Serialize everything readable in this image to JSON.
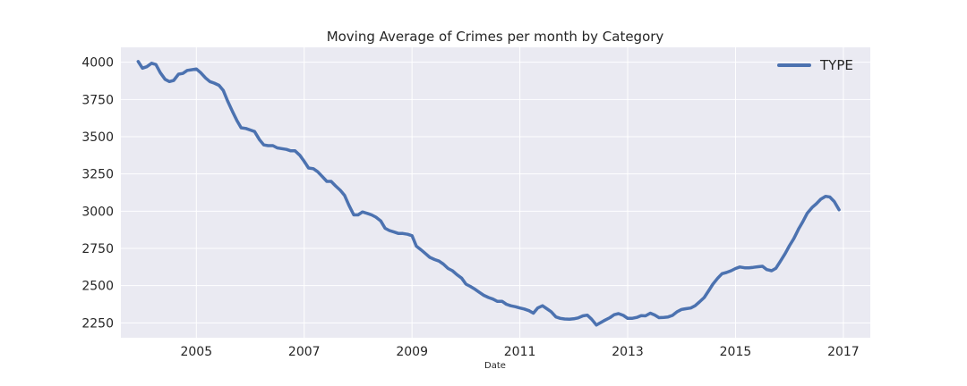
{
  "chart_data": {
    "type": "line",
    "title": "Moving Average of Crimes per month by Category",
    "xlabel": "Date",
    "ylabel": "",
    "xlim": [
      2003.6,
      2017.5
    ],
    "ylim": [
      2150,
      4100
    ],
    "x_ticks": [
      2005,
      2007,
      2009,
      2011,
      2013,
      2015,
      2017
    ],
    "y_ticks": [
      2250,
      2500,
      2750,
      3000,
      3250,
      3500,
      3750,
      4000
    ],
    "grid": true,
    "legend_position": "top-right",
    "series": [
      {
        "name": "TYPE",
        "color": "#4c72b0",
        "x": [
          2003.92,
          2004.0,
          2004.08,
          2004.17,
          2004.25,
          2004.33,
          2004.42,
          2004.5,
          2004.58,
          2004.67,
          2004.75,
          2004.83,
          2004.92,
          2005.0,
          2005.08,
          2005.17,
          2005.25,
          2005.33,
          2005.42,
          2005.5,
          2005.58,
          2005.67,
          2005.75,
          2005.83,
          2005.92,
          2006.0,
          2006.08,
          2006.17,
          2006.25,
          2006.33,
          2006.42,
          2006.5,
          2006.58,
          2006.67,
          2006.75,
          2006.83,
          2006.92,
          2007.0,
          2007.08,
          2007.17,
          2007.25,
          2007.33,
          2007.42,
          2007.5,
          2007.58,
          2007.67,
          2007.75,
          2007.83,
          2007.92,
          2008.0,
          2008.08,
          2008.17,
          2008.25,
          2008.33,
          2008.42,
          2008.5,
          2008.58,
          2008.67,
          2008.75,
          2008.83,
          2008.92,
          2009.0,
          2009.08,
          2009.17,
          2009.25,
          2009.33,
          2009.42,
          2009.5,
          2009.58,
          2009.67,
          2009.75,
          2009.83,
          2009.92,
          2010.0,
          2010.08,
          2010.17,
          2010.25,
          2010.33,
          2010.42,
          2010.5,
          2010.58,
          2010.67,
          2010.75,
          2010.83,
          2010.92,
          2011.0,
          2011.08,
          2011.17,
          2011.25,
          2011.33,
          2011.42,
          2011.5,
          2011.58,
          2011.67,
          2011.75,
          2011.83,
          2011.92,
          2012.0,
          2012.08,
          2012.17,
          2012.25,
          2012.33,
          2012.42,
          2012.5,
          2012.58,
          2012.67,
          2012.75,
          2012.83,
          2012.92,
          2013.0,
          2013.08,
          2013.17,
          2013.25,
          2013.33,
          2013.42,
          2013.5,
          2013.58,
          2013.67,
          2013.75,
          2013.83,
          2013.92,
          2014.0,
          2014.08,
          2014.17,
          2014.25,
          2014.33,
          2014.42,
          2014.5,
          2014.58,
          2014.67,
          2014.75,
          2014.83,
          2014.92,
          2015.0,
          2015.08,
          2015.17,
          2015.25,
          2015.33,
          2015.42,
          2015.5,
          2015.58,
          2015.67,
          2015.75,
          2015.83,
          2015.92,
          2016.0,
          2016.08,
          2016.17,
          2016.25,
          2016.33,
          2016.42,
          2016.5,
          2016.58,
          2016.67,
          2016.75,
          2016.83,
          2016.92
        ],
        "values": [
          4005,
          3960,
          3970,
          3993,
          3985,
          3930,
          3885,
          3870,
          3878,
          3920,
          3925,
          3945,
          3950,
          3955,
          3930,
          3895,
          3870,
          3860,
          3845,
          3810,
          3740,
          3670,
          3610,
          3560,
          3555,
          3545,
          3535,
          3480,
          3445,
          3440,
          3440,
          3425,
          3420,
          3415,
          3405,
          3405,
          3375,
          3335,
          3290,
          3285,
          3265,
          3235,
          3200,
          3200,
          3170,
          3140,
          3105,
          3040,
          2975,
          2975,
          2995,
          2985,
          2975,
          2960,
          2935,
          2885,
          2870,
          2860,
          2850,
          2850,
          2845,
          2835,
          2765,
          2740,
          2715,
          2690,
          2675,
          2665,
          2645,
          2615,
          2600,
          2575,
          2550,
          2510,
          2495,
          2475,
          2455,
          2435,
          2420,
          2410,
          2395,
          2395,
          2375,
          2365,
          2358,
          2350,
          2343,
          2332,
          2315,
          2350,
          2365,
          2345,
          2325,
          2290,
          2280,
          2276,
          2275,
          2277,
          2283,
          2297,
          2302,
          2275,
          2235,
          2252,
          2268,
          2285,
          2305,
          2312,
          2300,
          2280,
          2280,
          2287,
          2298,
          2297,
          2315,
          2303,
          2285,
          2287,
          2290,
          2300,
          2325,
          2340,
          2345,
          2350,
          2365,
          2390,
          2420,
          2465,
          2510,
          2550,
          2580,
          2588,
          2600,
          2615,
          2625,
          2620,
          2620,
          2623,
          2627,
          2630,
          2608,
          2600,
          2617,
          2662,
          2715,
          2768,
          2815,
          2880,
          2930,
          2985,
          3025,
          3050,
          3080,
          3100,
          3095,
          3065,
          3010
        ]
      }
    ]
  }
}
